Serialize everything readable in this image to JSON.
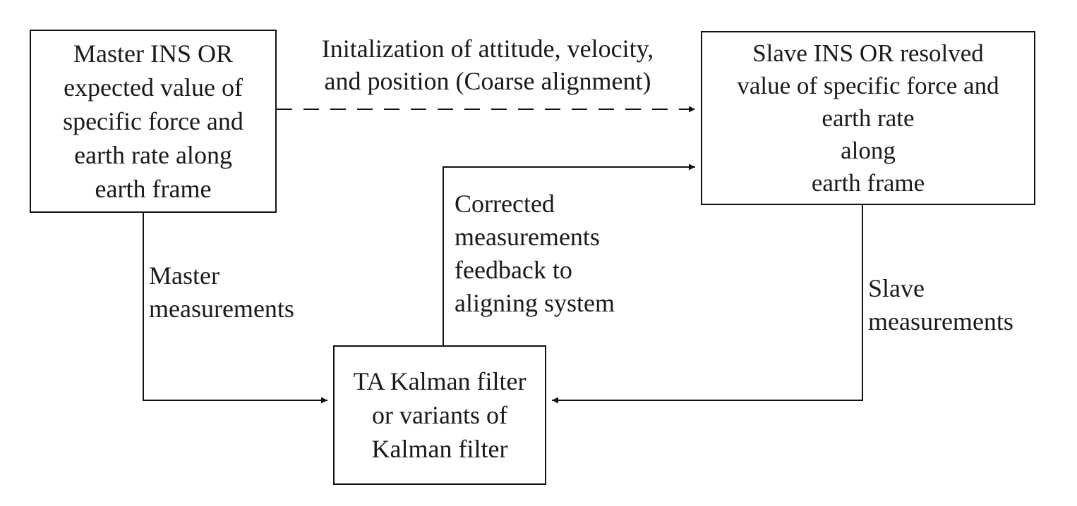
{
  "boxes": {
    "master": [
      "Master INS OR",
      "expected value of",
      "specific force and",
      "earth rate along",
      "earth frame"
    ],
    "slave": [
      "Slave INS OR resolved",
      "value of specific force and",
      "earth rate",
      "along",
      "earth frame"
    ],
    "kalman": [
      "TA Kalman filter",
      "or variants of",
      "Kalman filter"
    ]
  },
  "labels": {
    "init": [
      "Initalization of attitude, velocity,",
      "and position (Coarse alignment)"
    ],
    "corrected": [
      "Corrected",
      "measurements",
      "feedback to",
      "aligning system"
    ],
    "master_meas": [
      "Master",
      "measurements"
    ],
    "slave_meas": [
      "Slave",
      "measurements"
    ]
  }
}
